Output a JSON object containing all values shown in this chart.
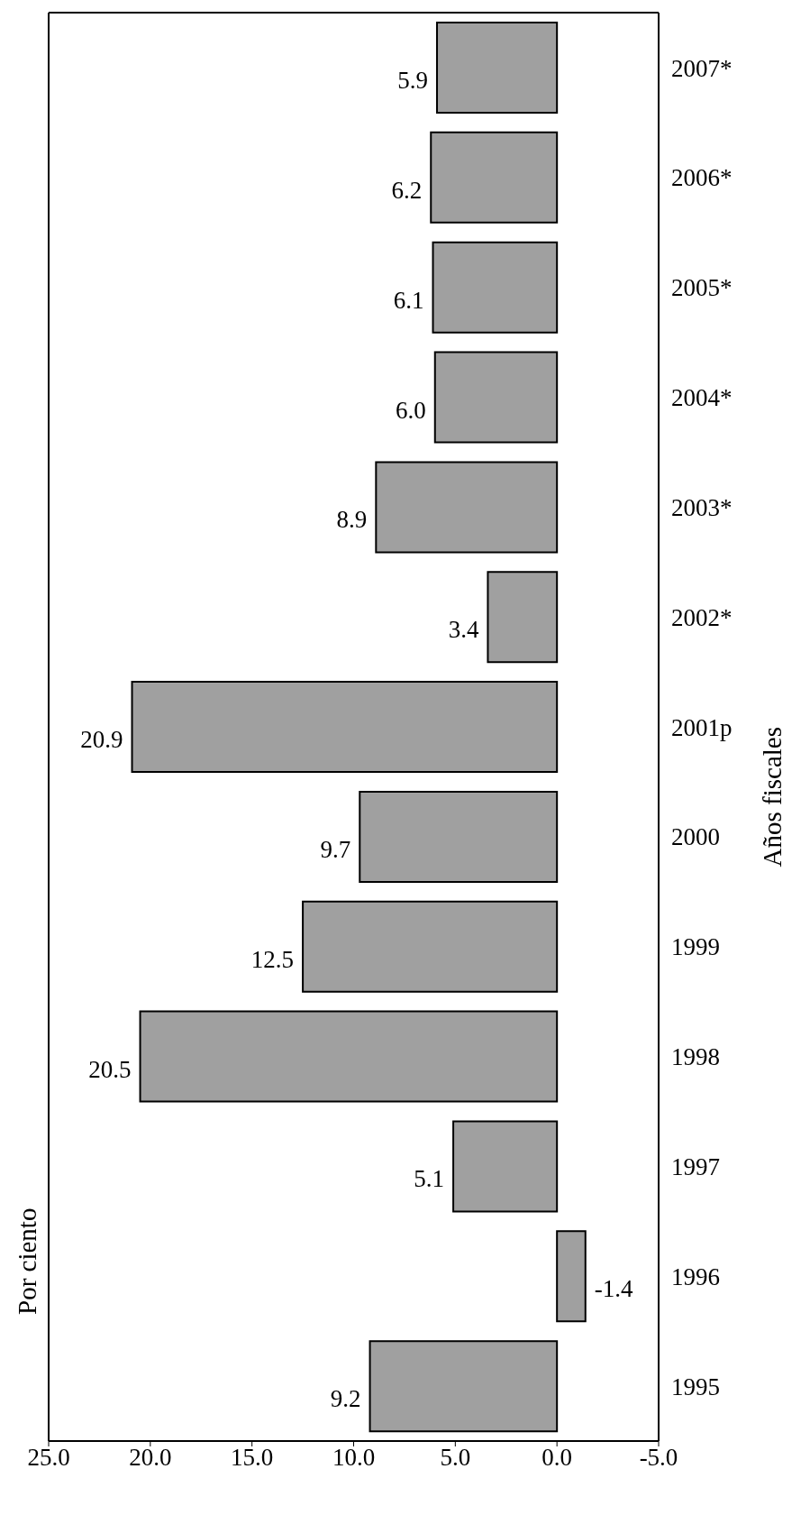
{
  "chart_data": {
    "type": "bar",
    "orientation": "horizontal",
    "annotations": [
      "Por ciento"
    ],
    "legend": false,
    "ylabel": "Años fiscales",
    "categories": [
      "2007*",
      "2006*",
      "2005*",
      "2004*",
      "2003*",
      "2002*",
      "2001p",
      "2000",
      "1999",
      "1998",
      "1997",
      "1996",
      "1995"
    ],
    "values": [
      5.9,
      6.2,
      6.1,
      6.0,
      8.9,
      3.4,
      20.9,
      9.7,
      12.5,
      20.5,
      5.1,
      -1.4,
      9.2
    ],
    "value_labels": [
      "5.9",
      "6.2",
      "6.1",
      "6.0",
      "8.9",
      "3.4",
      "20.9",
      "9.7",
      "12.5",
      "20.5",
      "5.1",
      "-1.4",
      "9.2"
    ],
    "color": "#a0a0a0",
    "xlim": [
      25,
      -5
    ],
    "xticks": [
      {
        "value": 25,
        "label": "25.0"
      },
      {
        "value": 20,
        "label": "20.0"
      },
      {
        "value": 15,
        "label": "15.0"
      },
      {
        "value": 10,
        "label": "10.0"
      },
      {
        "value": 5,
        "label": "5.0"
      },
      {
        "value": 0,
        "label": "0.0"
      },
      {
        "value": -5,
        "label": "-5.0"
      }
    ],
    "grid": false
  }
}
